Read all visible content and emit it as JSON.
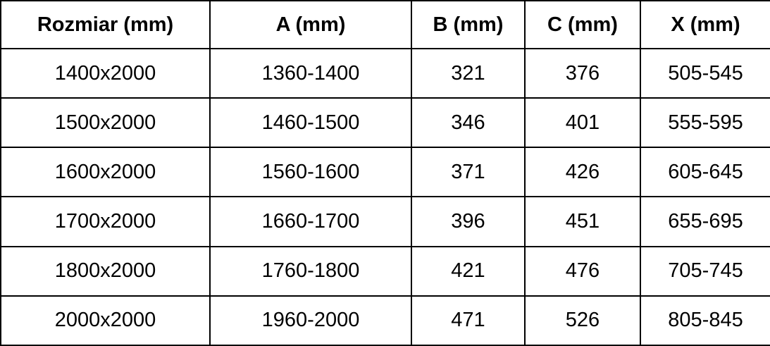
{
  "chart_data": {
    "type": "table",
    "headers": [
      "Rozmiar (mm)",
      "A (mm)",
      "B (mm)",
      "C (mm)",
      "X (mm)"
    ],
    "rows": [
      [
        "1400x2000",
        "1360-1400",
        "321",
        "376",
        "505-545"
      ],
      [
        "1500x2000",
        "1460-1500",
        "346",
        "401",
        "555-595"
      ],
      [
        "1600x2000",
        "1560-1600",
        "371",
        "426",
        "605-645"
      ],
      [
        "1700x2000",
        "1660-1700",
        "396",
        "451",
        "655-695"
      ],
      [
        "1800x2000",
        "1760-1800",
        "421",
        "476",
        "705-745"
      ],
      [
        "2000x2000",
        "1960-2000",
        "471",
        "526",
        "805-845"
      ]
    ],
    "text_color": "#000000",
    "border_color": "#000000",
    "background_color": "#ffffff"
  }
}
